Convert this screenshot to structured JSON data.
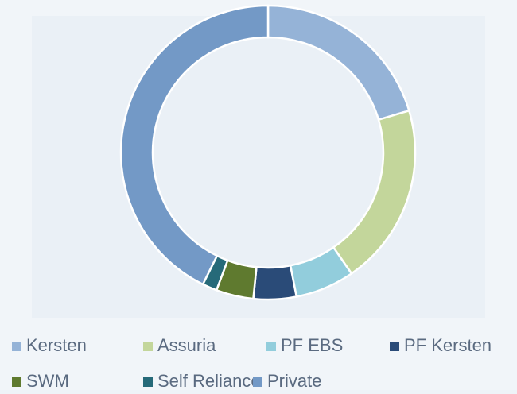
{
  "chart_data": {
    "type": "donut",
    "categories": [
      "Kersten",
      "Assuria",
      "PF EBS",
      "PF Kersten",
      "SWM",
      "Self Reliance",
      "Private"
    ],
    "values": [
      20.4,
      20,
      6.5,
      4.7,
      4.1,
      1.6,
      42.7
    ],
    "colors": [
      "#95b3d7",
      "#c3d69b",
      "#92cddc",
      "#2a4b78",
      "#5f7a2f",
      "#266a79",
      "#7399c6"
    ],
    "legend": "bottom"
  }
}
